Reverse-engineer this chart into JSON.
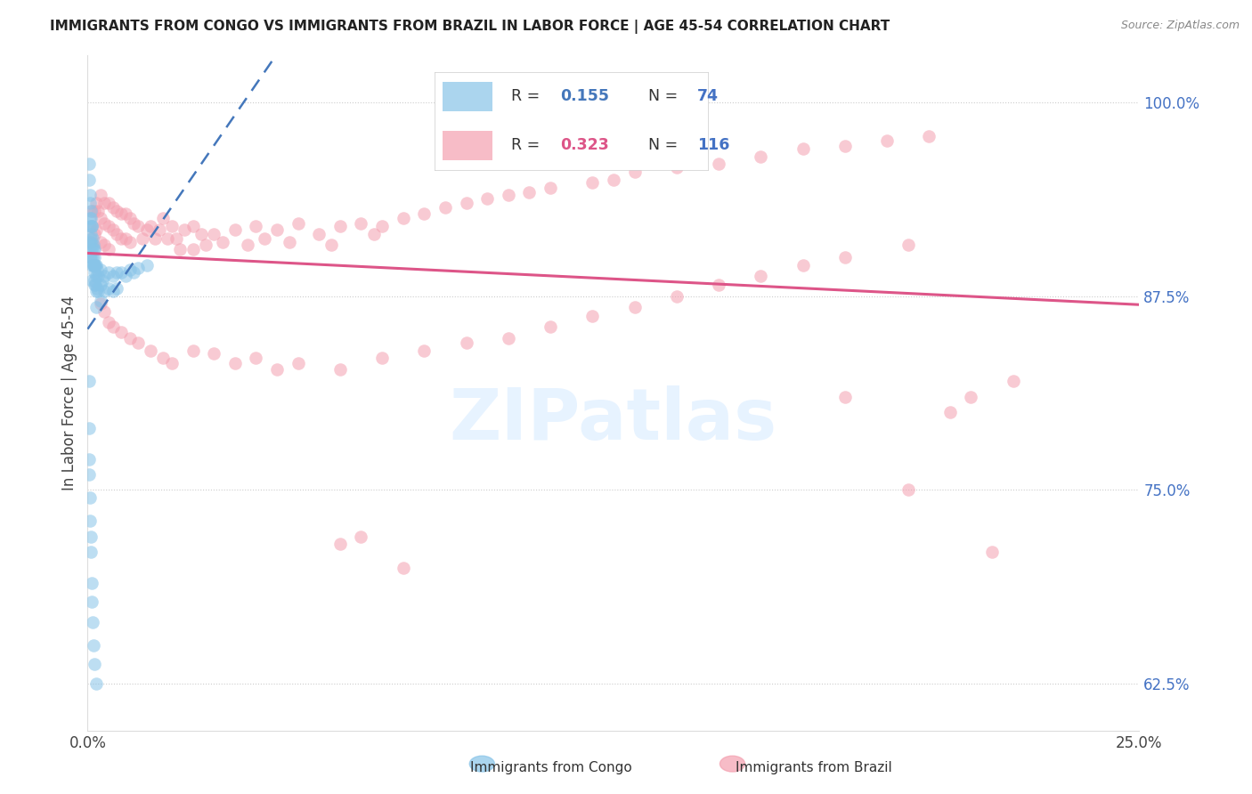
{
  "title": "IMMIGRANTS FROM CONGO VS IMMIGRANTS FROM BRAZIL IN LABOR FORCE | AGE 45-54 CORRELATION CHART",
  "source": "Source: ZipAtlas.com",
  "ylabel": "In Labor Force | Age 45-54",
  "xlim": [
    0.0,
    0.25
  ],
  "ylim": [
    0.595,
    1.03
  ],
  "xticks": [
    0.0,
    0.05,
    0.1,
    0.15,
    0.2,
    0.25
  ],
  "xticklabels": [
    "0.0%",
    "",
    "",
    "",
    "",
    "25.0%"
  ],
  "yticks_right": [
    0.625,
    0.75,
    0.875,
    1.0
  ],
  "ytick_right_labels": [
    "62.5%",
    "75.0%",
    "87.5%",
    "100.0%"
  ],
  "congo_label": "Immigrants from Congo",
  "brazil_label": "Immigrants from Brazil",
  "congo_R": 0.155,
  "congo_N": 74,
  "brazil_R": 0.323,
  "brazil_N": 116,
  "congo_color": "#88c4e8",
  "brazil_color": "#f4a0b0",
  "congo_line_color": "#4477bb",
  "brazil_line_color": "#dd5588",
  "right_axis_color": "#4472c4",
  "legend_R_color": "#555555",
  "legend_N_color": "#555555",
  "watermark_color": "#ddeeff",
  "congo_x": [
    0.0003,
    0.0003,
    0.0005,
    0.0005,
    0.0005,
    0.0006,
    0.0006,
    0.0006,
    0.0007,
    0.0007,
    0.0008,
    0.0008,
    0.0008,
    0.0009,
    0.0009,
    0.001,
    0.001,
    0.001,
    0.001,
    0.0012,
    0.0012,
    0.0013,
    0.0013,
    0.0014,
    0.0014,
    0.0015,
    0.0015,
    0.0015,
    0.0016,
    0.0016,
    0.0017,
    0.0017,
    0.0018,
    0.0018,
    0.002,
    0.002,
    0.002,
    0.002,
    0.0022,
    0.0022,
    0.0025,
    0.0025,
    0.003,
    0.003,
    0.003,
    0.0035,
    0.004,
    0.004,
    0.005,
    0.005,
    0.006,
    0.006,
    0.007,
    0.007,
    0.008,
    0.009,
    0.01,
    0.011,
    0.012,
    0.014,
    0.0003,
    0.0004,
    0.0004,
    0.0004,
    0.0005,
    0.0006,
    0.0007,
    0.0008,
    0.001,
    0.001,
    0.0012,
    0.0014,
    0.0016,
    0.002
  ],
  "congo_y": [
    0.96,
    0.95,
    0.94,
    0.925,
    0.9,
    0.935,
    0.92,
    0.91,
    0.93,
    0.915,
    0.925,
    0.912,
    0.9,
    0.92,
    0.905,
    0.92,
    0.908,
    0.895,
    0.885,
    0.912,
    0.9,
    0.905,
    0.895,
    0.908,
    0.895,
    0.905,
    0.895,
    0.885,
    0.9,
    0.89,
    0.895,
    0.882,
    0.895,
    0.882,
    0.895,
    0.888,
    0.878,
    0.868,
    0.892,
    0.88,
    0.888,
    0.878,
    0.892,
    0.882,
    0.872,
    0.885,
    0.888,
    0.878,
    0.89,
    0.88,
    0.888,
    0.878,
    0.89,
    0.88,
    0.89,
    0.888,
    0.892,
    0.89,
    0.893,
    0.895,
    0.82,
    0.79,
    0.77,
    0.76,
    0.745,
    0.73,
    0.72,
    0.71,
    0.69,
    0.678,
    0.665,
    0.65,
    0.638,
    0.625
  ],
  "brazil_x": [
    0.001,
    0.001,
    0.001,
    0.0015,
    0.0015,
    0.002,
    0.002,
    0.0025,
    0.003,
    0.003,
    0.003,
    0.004,
    0.004,
    0.004,
    0.005,
    0.005,
    0.005,
    0.006,
    0.006,
    0.007,
    0.007,
    0.008,
    0.008,
    0.009,
    0.009,
    0.01,
    0.01,
    0.011,
    0.012,
    0.013,
    0.014,
    0.015,
    0.016,
    0.017,
    0.018,
    0.019,
    0.02,
    0.021,
    0.022,
    0.023,
    0.025,
    0.025,
    0.027,
    0.028,
    0.03,
    0.032,
    0.035,
    0.038,
    0.04,
    0.042,
    0.045,
    0.048,
    0.05,
    0.055,
    0.058,
    0.06,
    0.065,
    0.068,
    0.07,
    0.075,
    0.08,
    0.085,
    0.09,
    0.095,
    0.1,
    0.105,
    0.11,
    0.12,
    0.125,
    0.13,
    0.14,
    0.15,
    0.16,
    0.17,
    0.18,
    0.19,
    0.2,
    0.003,
    0.004,
    0.005,
    0.006,
    0.008,
    0.01,
    0.012,
    0.015,
    0.018,
    0.02,
    0.025,
    0.03,
    0.035,
    0.04,
    0.045,
    0.05,
    0.06,
    0.07,
    0.08,
    0.09,
    0.1,
    0.11,
    0.12,
    0.13,
    0.14,
    0.15,
    0.16,
    0.17,
    0.18,
    0.195,
    0.205,
    0.21,
    0.22,
    0.18,
    0.195,
    0.215,
    0.065,
    0.075,
    0.06
  ],
  "brazil_y": [
    0.93,
    0.92,
    0.91,
    0.93,
    0.915,
    0.935,
    0.918,
    0.93,
    0.94,
    0.925,
    0.91,
    0.935,
    0.922,
    0.908,
    0.935,
    0.92,
    0.905,
    0.932,
    0.918,
    0.93,
    0.915,
    0.928,
    0.912,
    0.928,
    0.912,
    0.925,
    0.91,
    0.922,
    0.92,
    0.912,
    0.918,
    0.92,
    0.912,
    0.918,
    0.925,
    0.912,
    0.92,
    0.912,
    0.905,
    0.918,
    0.92,
    0.905,
    0.915,
    0.908,
    0.915,
    0.91,
    0.918,
    0.908,
    0.92,
    0.912,
    0.918,
    0.91,
    0.922,
    0.915,
    0.908,
    0.92,
    0.922,
    0.915,
    0.92,
    0.925,
    0.928,
    0.932,
    0.935,
    0.938,
    0.94,
    0.942,
    0.945,
    0.948,
    0.95,
    0.955,
    0.958,
    0.96,
    0.965,
    0.97,
    0.972,
    0.975,
    0.978,
    0.87,
    0.865,
    0.858,
    0.855,
    0.852,
    0.848,
    0.845,
    0.84,
    0.835,
    0.832,
    0.84,
    0.838,
    0.832,
    0.835,
    0.828,
    0.832,
    0.828,
    0.835,
    0.84,
    0.845,
    0.848,
    0.855,
    0.862,
    0.868,
    0.875,
    0.882,
    0.888,
    0.895,
    0.9,
    0.908,
    0.8,
    0.81,
    0.82,
    0.81,
    0.75,
    0.71,
    0.72,
    0.7,
    0.715
  ]
}
